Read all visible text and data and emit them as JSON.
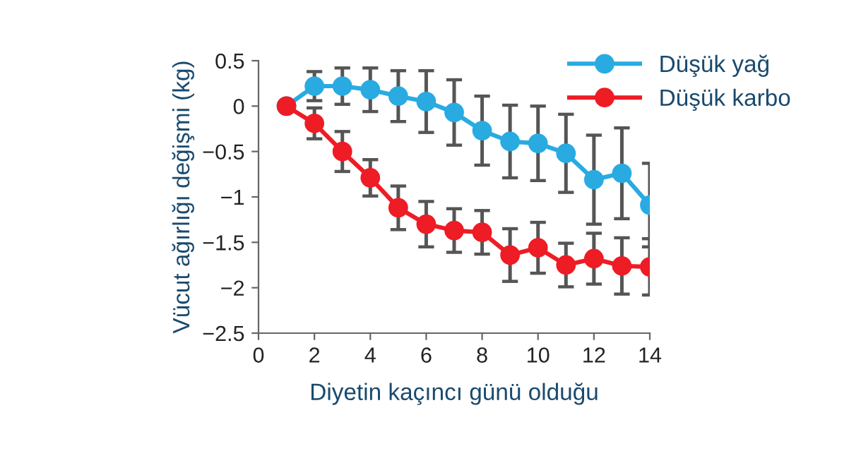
{
  "chart_data": {
    "type": "line",
    "xlabel": "Diyetin kaçıncı günü olduğu",
    "ylabel": "Vücut ağırlığı değişmi (kg)",
    "xlim": [
      0,
      14
    ],
    "xticks": [
      0,
      2,
      4,
      6,
      8,
      10,
      12,
      14
    ],
    "ylim": [
      -2.5,
      0.5
    ],
    "yticks": [
      0.5,
      0,
      -0.5,
      -1,
      -1.5,
      -2,
      -2.5
    ],
    "marker": "circle",
    "line_style": "solid",
    "grid": false,
    "legend": "top right",
    "series": [
      {
        "name": "Düşük yağ",
        "color": "#29abe2",
        "x": [
          1,
          2,
          3,
          4,
          5,
          6,
          7,
          8,
          9,
          10,
          11,
          12,
          13,
          14
        ],
        "values": [
          0,
          0.22,
          0.22,
          0.18,
          0.11,
          0.05,
          -0.07,
          -0.27,
          -0.39,
          -0.41,
          -0.52,
          -0.81,
          -0.74,
          -1.09
        ],
        "errors": [
          null,
          0.16,
          0.2,
          0.24,
          0.28,
          0.34,
          0.36,
          0.38,
          0.4,
          0.41,
          0.43,
          0.49,
          0.5,
          0.46
        ]
      },
      {
        "name": "Düşük karbo",
        "color": "#ee1c25",
        "x": [
          1,
          2,
          3,
          4,
          5,
          6,
          7,
          8,
          9,
          10,
          11,
          12,
          13,
          14
        ],
        "values": [
          0,
          -0.19,
          -0.5,
          -0.79,
          -1.12,
          -1.3,
          -1.37,
          -1.39,
          -1.64,
          -1.56,
          -1.75,
          -1.68,
          -1.76,
          -1.77
        ],
        "errors": [
          null,
          0.17,
          0.22,
          0.2,
          0.24,
          0.25,
          0.24,
          0.24,
          0.29,
          0.28,
          0.24,
          0.28,
          0.31,
          0.31
        ]
      }
    ]
  }
}
